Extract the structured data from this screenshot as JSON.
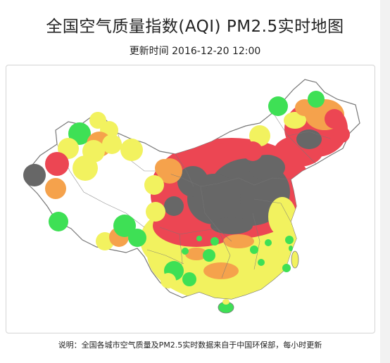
{
  "header": {
    "title": "全国空气质量指数(AQI) PM2.5实时地图",
    "update_time": "更新时间 2016-12-20 12:00"
  },
  "footer": {
    "note": "说明：全国各城市空气质量及PM2.5实时数据来自于中国环保部，每小时更新"
  },
  "colors": {
    "good": "#3ee055",
    "moderate": "#f2f25f",
    "light": "#f5a24c",
    "moderate_pollution": "#ec4653",
    "heavy": "#676767",
    "border": "#777777",
    "land": "#ffffff"
  },
  "map_data": {
    "type": "aqi_bubble_map",
    "levels": [
      {
        "name": "good",
        "color": "#3ee055"
      },
      {
        "name": "moderate",
        "color": "#f2f25f"
      },
      {
        "name": "light",
        "color": "#f5a24c"
      },
      {
        "name": "moderate_pollution",
        "color": "#ec4653"
      },
      {
        "name": "heavy",
        "color": "#676767"
      }
    ]
  }
}
